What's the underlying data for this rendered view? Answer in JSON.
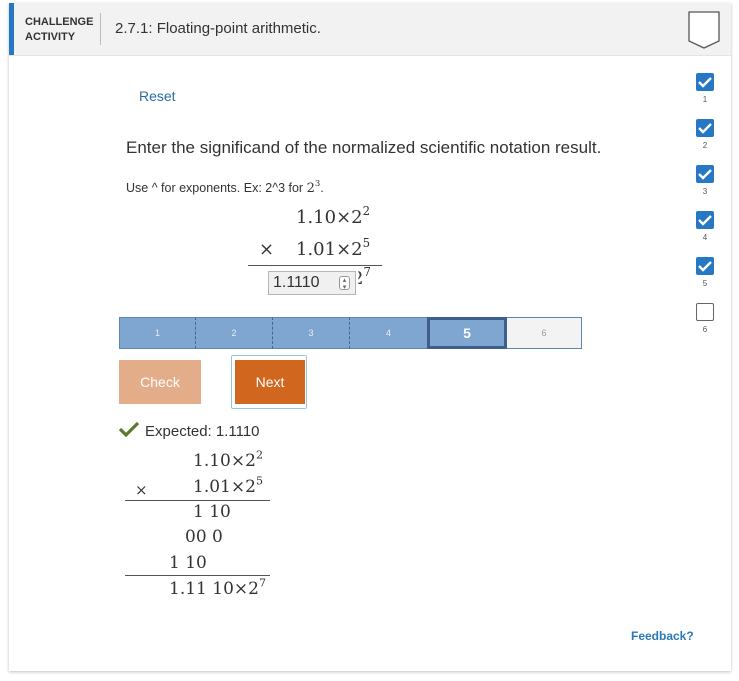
{
  "header": {
    "label_line1": "CHALLENGE",
    "label_line2": "ACTIVITY",
    "title": "2.7.1: Floating-point arithmetic."
  },
  "reset_label": "Reset",
  "prompt": "Enter the significand of the normalized scientific notation result.",
  "hint_text": "Use ^ for exponents. Ex: 2^3 for ",
  "hint_math_base": "2",
  "hint_math_exp": "3",
  "hint_period": ".",
  "problem": {
    "operand1_mantissa": "1.10",
    "operand1_base": "2",
    "operand1_exp": "2",
    "operator": "×",
    "operand2_mantissa": "1.01",
    "operand2_base": "2",
    "operand2_exp": "5",
    "answer_value": "1.1110",
    "result_base": "2",
    "result_exp": "7"
  },
  "progress": {
    "steps": [
      "1",
      "2",
      "3",
      "4",
      "5",
      "6"
    ],
    "current": "5"
  },
  "buttons": {
    "check": "Check",
    "next": "Next"
  },
  "expected": {
    "label": "Expected: 1.1110"
  },
  "solution": {
    "row1_mantissa": "1.10",
    "row1_base": "2",
    "row1_exp": "2",
    "times": "×",
    "row2_mantissa": "1.01",
    "row2_base": "2",
    "row2_exp": "5",
    "partial1": "1 10",
    "partial2": "00 0",
    "partial3": "1 10",
    "result_mantissa": "1.11 10",
    "result_base": "2",
    "result_exp": "7"
  },
  "feedback_label": "Feedback?",
  "levels": [
    "1",
    "2",
    "3",
    "4",
    "5",
    "6"
  ],
  "levels_completed": 5,
  "colors": {
    "accent": "#2678c4",
    "next_button": "#d1661f",
    "check_button": "#e4ad89",
    "progress_fill": "#7ea6d0",
    "check_mark": "#5b7a2e"
  }
}
